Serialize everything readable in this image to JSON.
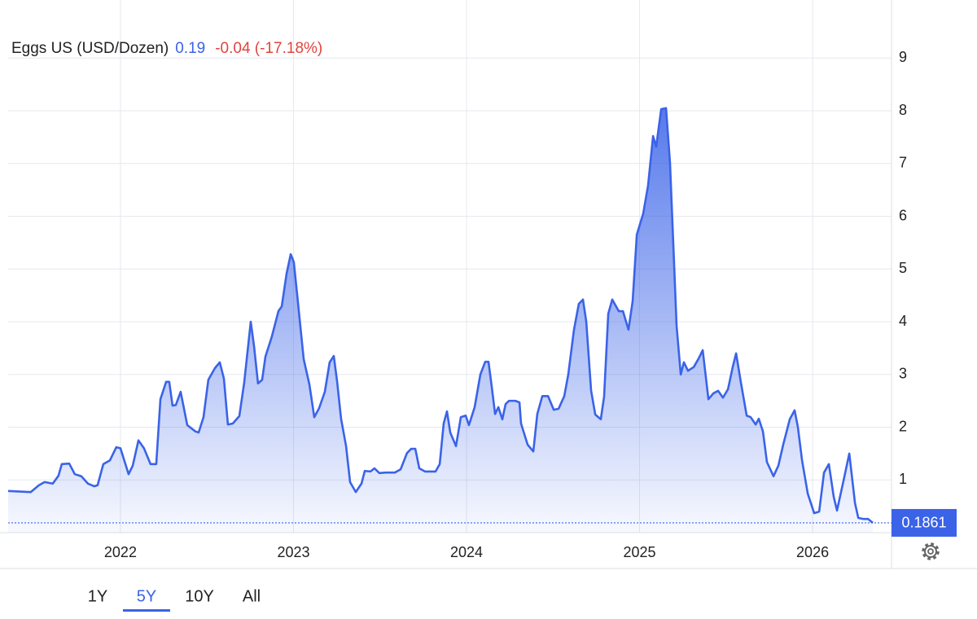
{
  "chart_data": {
    "type": "area",
    "title": "Eggs US (USD/Dozen)",
    "price": 0.19,
    "change": "-0.04 (-17.18%)",
    "x": [
      2021.351,
      2021.482,
      2021.529,
      2021.562,
      2021.609,
      2021.642,
      2021.661,
      2021.704,
      2021.736,
      2021.774,
      2021.812,
      2021.849,
      2021.868,
      2021.901,
      2021.939,
      2021.976,
      2022.0,
      2022.047,
      2022.071,
      2022.104,
      2022.136,
      2022.174,
      2022.207,
      2022.231,
      2022.264,
      2022.282,
      2022.301,
      2022.32,
      2022.348,
      2022.386,
      2022.433,
      2022.452,
      2022.48,
      2022.508,
      2022.546,
      2022.574,
      2022.598,
      2022.621,
      2022.649,
      2022.687,
      2022.715,
      2022.753,
      2022.772,
      2022.795,
      2022.819,
      2022.838,
      2022.875,
      2022.913,
      2022.932,
      2022.96,
      2022.984,
      2023.002,
      2023.026,
      2023.059,
      2023.092,
      2023.12,
      2023.148,
      2023.181,
      2023.209,
      2023.233,
      2023.252,
      2023.275,
      2023.304,
      2023.327,
      2023.36,
      2023.393,
      2023.412,
      2023.445,
      2023.468,
      2023.496,
      2023.534,
      2023.586,
      2023.619,
      2023.656,
      2023.68,
      2023.704,
      2023.727,
      2023.76,
      2023.821,
      2023.845,
      2023.868,
      2023.887,
      2023.906,
      2023.939,
      2023.967,
      2023.995,
      2024.014,
      2024.047,
      2024.08,
      2024.108,
      2024.127,
      2024.146,
      2024.165,
      2024.184,
      2024.207,
      2024.226,
      2024.245,
      2024.282,
      2024.306,
      2024.315,
      2024.353,
      2024.386,
      2024.409,
      2024.438,
      2024.471,
      2024.504,
      2024.532,
      2024.565,
      2024.588,
      2024.621,
      2024.649,
      2024.673,
      2024.692,
      2024.72,
      2024.744,
      2024.776,
      2024.795,
      2024.819,
      2024.842,
      2024.88,
      2024.904,
      2024.936,
      2024.96,
      2024.984,
      2025.021,
      2025.049,
      2025.078,
      2025.096,
      2025.125,
      2025.153,
      2025.176,
      2025.195,
      2025.214,
      2025.238,
      2025.256,
      2025.28,
      2025.313,
      2025.341,
      2025.365,
      2025.398,
      2025.426,
      2025.454,
      2025.482,
      2025.511,
      2025.539,
      2025.558,
      2025.586,
      2025.619,
      2025.642,
      2025.671,
      2025.689,
      2025.713,
      2025.736,
      2025.774,
      2025.802,
      2025.831,
      2025.868,
      2025.896,
      2025.915,
      2025.939,
      2025.972,
      2026.009,
      2026.038,
      2026.066,
      2026.094,
      2026.122,
      2026.141,
      2026.179,
      2026.212,
      2026.245,
      2026.264,
      2026.292,
      2026.32,
      2026.348
    ],
    "series": [
      {
        "color": "#3a63e8",
        "values": [
          0.79,
          0.77,
          0.9,
          0.96,
          0.93,
          1.08,
          1.3,
          1.31,
          1.11,
          1.07,
          0.93,
          0.88,
          0.9,
          1.3,
          1.37,
          1.62,
          1.6,
          1.11,
          1.27,
          1.75,
          1.6,
          1.3,
          1.3,
          2.53,
          2.86,
          2.86,
          2.41,
          2.42,
          2.67,
          2.04,
          1.92,
          1.9,
          2.19,
          2.9,
          3.12,
          3.23,
          2.92,
          2.05,
          2.07,
          2.21,
          2.84,
          4.0,
          3.54,
          2.83,
          2.9,
          3.34,
          3.72,
          4.2,
          4.29,
          4.91,
          5.28,
          5.13,
          4.36,
          3.29,
          2.81,
          2.19,
          2.36,
          2.67,
          3.23,
          3.35,
          2.87,
          2.16,
          1.64,
          0.96,
          0.77,
          0.93,
          1.17,
          1.16,
          1.22,
          1.13,
          1.14,
          1.14,
          1.2,
          1.51,
          1.59,
          1.59,
          1.22,
          1.16,
          1.16,
          1.3,
          2.07,
          2.3,
          1.9,
          1.64,
          2.19,
          2.22,
          2.04,
          2.38,
          3.0,
          3.24,
          3.24,
          2.76,
          2.25,
          2.38,
          2.15,
          2.44,
          2.5,
          2.5,
          2.47,
          2.07,
          1.67,
          1.54,
          2.25,
          2.59,
          2.59,
          2.33,
          2.35,
          2.59,
          3.0,
          3.85,
          4.34,
          4.42,
          4.0,
          2.69,
          2.24,
          2.15,
          2.58,
          4.15,
          4.42,
          4.2,
          4.2,
          3.85,
          4.39,
          5.65,
          6.05,
          6.58,
          7.52,
          7.32,
          8.03,
          8.05,
          7.01,
          5.47,
          3.92,
          3.0,
          3.23,
          3.07,
          3.14,
          3.3,
          3.46,
          2.53,
          2.64,
          2.69,
          2.56,
          2.72,
          3.15,
          3.4,
          2.84,
          2.22,
          2.19,
          2.05,
          2.16,
          1.92,
          1.34,
          1.07,
          1.27,
          1.68,
          2.15,
          2.32,
          2.0,
          1.37,
          0.74,
          0.37,
          0.4,
          1.14,
          1.3,
          0.68,
          0.42,
          0.99,
          1.5,
          0.56,
          0.28,
          0.26,
          0.26,
          0.1861
        ]
      }
    ],
    "xlim": [
      2021.351,
      2026.456
    ],
    "xticks": [
      2022,
      2023,
      2024,
      2025,
      2026
    ],
    "ylim": [
      0,
      10
    ],
    "yticks": [
      1,
      2,
      3,
      4,
      5,
      6,
      7,
      8,
      9
    ],
    "grid": true,
    "change_color": "#e0443e",
    "range_buttons": [
      "1Y",
      "5Y",
      "10Y",
      "All"
    ],
    "selected_range": 1
  }
}
